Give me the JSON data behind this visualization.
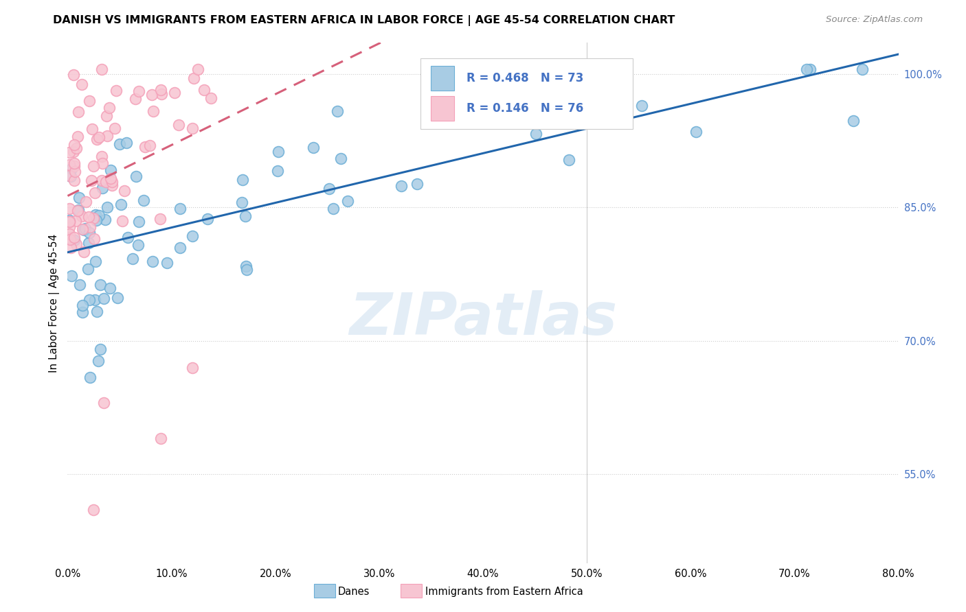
{
  "title": "DANISH VS IMMIGRANTS FROM EASTERN AFRICA IN LABOR FORCE | AGE 45-54 CORRELATION CHART",
  "source": "Source: ZipAtlas.com",
  "ylabel": "In Labor Force | Age 45-54",
  "x_min": 0.0,
  "x_max": 0.8,
  "y_min": 0.45,
  "y_max": 1.035,
  "blue_color": "#a8cce4",
  "blue_edge_color": "#6baed6",
  "pink_color": "#f7c5d2",
  "pink_edge_color": "#f4a0b8",
  "blue_line_color": "#2166ac",
  "pink_line_color": "#d6607a",
  "legend_R_blue": "0.468",
  "legend_N_blue": "73",
  "legend_R_pink": "0.146",
  "legend_N_pink": "76",
  "watermark": "ZIPatlas",
  "legend_label_blue": "Danes",
  "legend_label_pink": "Immigrants from Eastern Africa",
  "grid_color": "#cccccc",
  "right_tick_color": "#4472c4",
  "x_tick_vals": [
    0.0,
    0.1,
    0.2,
    0.3,
    0.4,
    0.5,
    0.6,
    0.7,
    0.8
  ],
  "x_tick_labels": [
    "0.0%",
    "10.0%",
    "20.0%",
    "30.0%",
    "40.0%",
    "50.0%",
    "60.0%",
    "70.0%",
    "80.0%"
  ],
  "y_tick_vals": [
    0.55,
    0.7,
    0.85,
    1.0
  ],
  "y_tick_labels": [
    "55.0%",
    "70.0%",
    "85.0%",
    "100.0%"
  ]
}
